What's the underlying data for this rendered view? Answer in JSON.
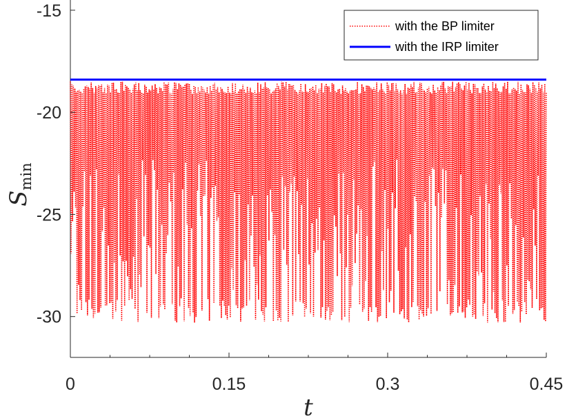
{
  "chart_data": {
    "type": "line",
    "xlabel": "t",
    "ylabel_main": "S",
    "ylabel_sub": "min",
    "xlim": [
      0,
      0.45
    ],
    "ylim": [
      -32,
      -14.5
    ],
    "x_ticks": [
      0,
      0.15,
      0.3,
      0.45
    ],
    "x_tick_labels": [
      "0",
      "0.15",
      "0.3",
      "0.45"
    ],
    "y_ticks": [
      -15,
      -20,
      -25,
      -30
    ],
    "y_tick_labels": [
      "-15",
      "-20",
      "-25",
      "-30"
    ],
    "grid": false,
    "legend_position": "top-right",
    "series": [
      {
        "name": "with the BP limiter",
        "style": "dotted",
        "color": "#ff0000",
        "oscillation_min": -30.3,
        "oscillation_max": -18.5,
        "t_start": 0,
        "t_end": 0.45
      },
      {
        "name": "with the IRP limiter",
        "style": "solid",
        "color": "#0000ff",
        "x": [
          0,
          0.45
        ],
        "y": [
          -18.4,
          -18.4
        ]
      }
    ]
  }
}
